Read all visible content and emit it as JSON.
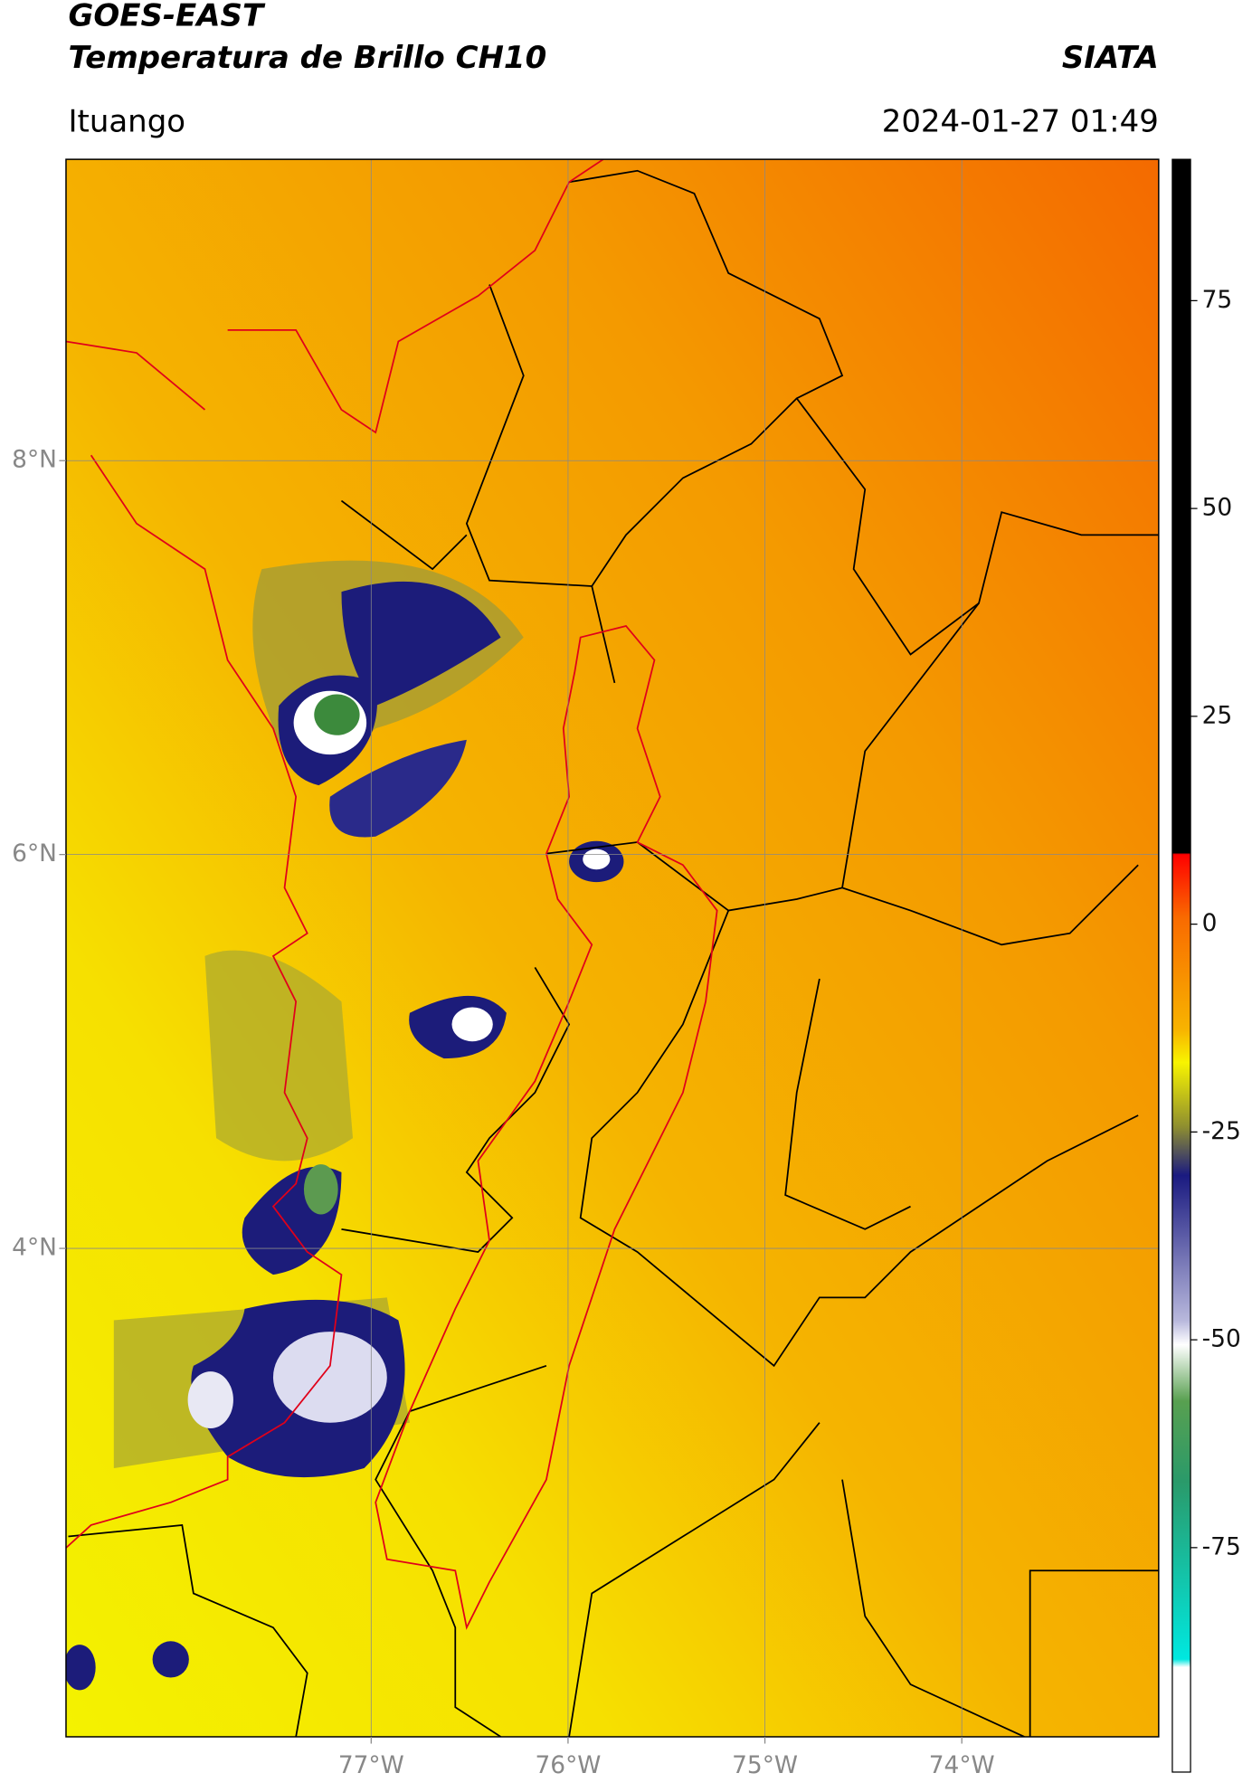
{
  "header": {
    "title": "GOES-EAST",
    "subtitle": "Temperatura de Brillo CH10",
    "source": "SIATA",
    "location": "Ituango",
    "datetime": "2024-01-27 01:49"
  },
  "map": {
    "xlim": [
      -78.55,
      -73.0
    ],
    "ylim": [
      1.52,
      9.53
    ],
    "xticks": [
      {
        "value": -77,
        "label": "77°W"
      },
      {
        "value": -76,
        "label": "76°W"
      },
      {
        "value": -75,
        "label": "75°W"
      },
      {
        "value": -74,
        "label": "74°W"
      }
    ],
    "yticks": [
      {
        "value": 8,
        "label": "8°N"
      },
      {
        "value": 6,
        "label": "6°N"
      },
      {
        "value": 4,
        "label": "4°N"
      }
    ],
    "grid": true
  },
  "colorbar": {
    "lim": [
      -102,
      92
    ],
    "ticks": [
      75,
      50,
      25,
      0,
      -25,
      -50,
      -75
    ]
  }
}
